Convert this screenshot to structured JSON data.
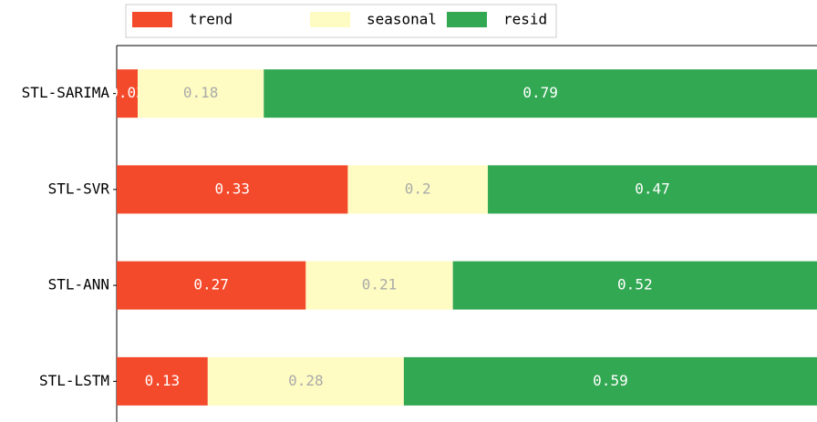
{
  "chart_data": {
    "type": "barh_stacked",
    "categories": [
      "STL-SARIMA",
      "STL-SVR",
      "STL-ANN",
      "STL-LSTM"
    ],
    "series": [
      {
        "name": "trend",
        "color": "#f44a2c",
        "label_color": "#ffffff",
        "values": [
          0.03,
          0.33,
          0.27,
          0.13
        ]
      },
      {
        "name": "seasonal",
        "color": "#fefcc2",
        "label_color": "#aaaaaa",
        "values": [
          0.18,
          0.2,
          0.21,
          0.28
        ]
      },
      {
        "name": "resid",
        "color": "#33a853",
        "label_color": "#ffffff",
        "values": [
          0.79,
          0.47,
          0.52,
          0.59
        ]
      }
    ],
    "xlim": [
      0,
      1
    ],
    "legend": "top"
  }
}
